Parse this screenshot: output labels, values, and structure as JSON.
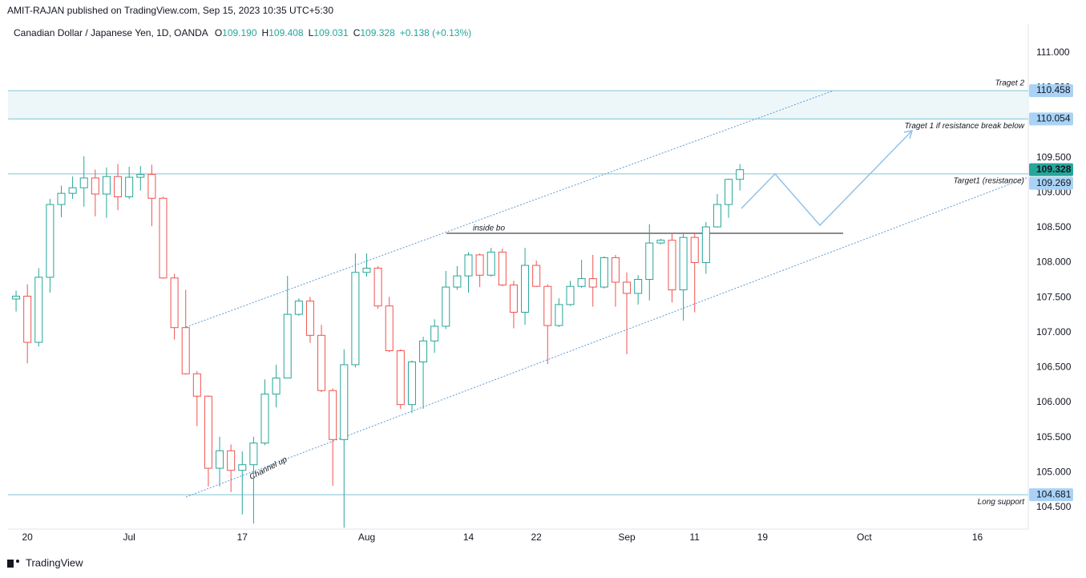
{
  "publisher": "AMIT-RAJAN published on TradingView.com, Sep 15, 2023 10:35 UTC+5:30",
  "logo": "TradingView",
  "chart_data": {
    "type": "candlestick",
    "symbol": "Canadian Dollar / Japanese Yen, 1D, OANDA",
    "ohlc_legend": [
      {
        "k": "O",
        "v": "109.190"
      },
      {
        "k": "H",
        "v": "109.408"
      },
      {
        "k": "L",
        "v": "109.031"
      },
      {
        "k": "C",
        "v": "109.328"
      }
    ],
    "change": "+0.138 (+0.13%)",
    "up_color": "#26a69a",
    "down_color": "#ef5350",
    "categories": [
      null,
      "20",
      null,
      null,
      null,
      null,
      null,
      null,
      null,
      null,
      "Jul",
      null,
      null,
      null,
      null,
      null,
      null,
      null,
      null,
      null,
      "17",
      null,
      null,
      null,
      null,
      null,
      null,
      null,
      null,
      null,
      null,
      "Aug",
      null,
      null,
      null,
      null,
      null,
      null,
      null,
      null,
      "14",
      null,
      null,
      null,
      null,
      null,
      "22",
      null,
      null,
      null,
      null,
      null,
      null,
      null,
      "Sep",
      null,
      null,
      null,
      null,
      null,
      "11",
      null,
      null,
      null,
      null,
      null,
      "19",
      null,
      null,
      null,
      null,
      null,
      null,
      null,
      null,
      "Oct",
      null,
      null,
      null,
      null,
      null,
      null,
      null,
      null,
      null,
      "16",
      null,
      null,
      null,
      null
    ],
    "open": [
      107.48,
      107.52,
      106.86,
      107.79,
      108.83,
      108.99,
      109.07,
      109.21,
      108.98,
      109.23,
      108.94,
      109.22,
      109.26,
      108.92,
      107.78,
      107.07,
      106.41,
      106.09,
      105.06,
      105.31,
      105.03,
      105.11,
      105.42,
      106.12,
      106.35,
      107.26,
      107.45,
      106.96,
      106.17,
      105.47,
      106.54,
      107.86,
      107.92,
      107.38,
      106.74,
      105.97,
      106.58,
      106.88,
      107.09,
      107.65,
      107.81,
      108.11,
      107.82,
      108.15,
      107.68,
      107.29,
      107.96,
      107.66,
      107.1,
      107.4,
      107.66,
      107.77,
      107.65,
      108.07,
      107.72,
      107.56,
      107.76,
      108.28,
      108.32,
      107.61,
      108.36,
      108.0,
      108.51,
      108.83,
      109.19,
      null,
      null,
      null,
      null,
      null,
      null,
      null,
      null,
      null,
      null,
      null,
      null,
      null,
      null,
      null,
      null,
      null,
      null,
      null,
      null,
      null,
      null,
      null,
      null,
      null
    ],
    "high": [
      107.6,
      107.69,
      107.92,
      108.91,
      109.1,
      109.23,
      109.52,
      109.33,
      109.36,
      109.41,
      109.37,
      109.38,
      109.4,
      108.94,
      107.84,
      107.61,
      106.45,
      106.1,
      105.51,
      105.4,
      105.3,
      105.51,
      106.33,
      106.54,
      107.81,
      107.49,
      107.51,
      107.11,
      106.2,
      106.76,
      108.13,
      108.13,
      107.95,
      107.51,
      106.76,
      106.6,
      106.94,
      107.19,
      107.88,
      107.95,
      108.15,
      108.13,
      108.21,
      108.2,
      107.74,
      108.21,
      108.03,
      107.69,
      107.49,
      107.74,
      108.04,
      108.11,
      108.09,
      108.11,
      107.86,
      107.82,
      108.55,
      108.34,
      108.42,
      108.43,
      108.43,
      108.58,
      108.98,
      109.2,
      109.408,
      null,
      null,
      null,
      null,
      null,
      null,
      null,
      null,
      null,
      null,
      null,
      null,
      null,
      null,
      null,
      null,
      null,
      null,
      null,
      null,
      null,
      null,
      null,
      null,
      null
    ],
    "low": [
      107.3,
      106.56,
      106.8,
      107.57,
      108.65,
      108.91,
      108.8,
      108.66,
      108.64,
      108.75,
      108.91,
      109.03,
      108.52,
      107.77,
      106.9,
      106.4,
      105.66,
      104.8,
      104.8,
      104.72,
      104.4,
      104.27,
      105.39,
      105.93,
      106.35,
      107.24,
      106.85,
      106.15,
      104.81,
      104.21,
      106.5,
      107.8,
      107.34,
      106.72,
      105.91,
      105.85,
      105.91,
      106.71,
      107.05,
      107.61,
      107.57,
      107.65,
      107.8,
      107.66,
      107.06,
      107.11,
      107.65,
      106.55,
      107.08,
      107.38,
      107.64,
      107.37,
      107.63,
      107.37,
      106.69,
      107.4,
      107.46,
      108.26,
      107.43,
      107.17,
      107.29,
      107.84,
      108.5,
      108.64,
      109.031,
      null,
      null,
      null,
      null,
      null,
      null,
      null,
      null,
      null,
      null,
      null,
      null,
      null,
      null,
      null,
      null,
      null,
      null,
      null,
      null,
      null,
      null,
      null,
      null,
      null
    ],
    "close": [
      107.52,
      106.86,
      107.79,
      108.83,
      108.99,
      109.07,
      109.21,
      108.98,
      109.23,
      108.94,
      109.22,
      109.26,
      108.92,
      107.78,
      107.07,
      106.41,
      106.09,
      105.06,
      105.31,
      105.03,
      105.11,
      105.42,
      106.12,
      106.35,
      107.26,
      107.45,
      106.96,
      106.17,
      105.47,
      106.54,
      107.86,
      107.92,
      107.38,
      106.74,
      105.97,
      106.58,
      106.88,
      107.09,
      107.65,
      107.81,
      108.11,
      107.82,
      108.15,
      107.68,
      107.29,
      107.96,
      107.66,
      107.1,
      107.4,
      107.66,
      107.77,
      107.65,
      108.07,
      107.72,
      107.56,
      107.76,
      108.28,
      108.32,
      107.61,
      108.36,
      108.0,
      108.51,
      108.83,
      109.19,
      109.328,
      null,
      null,
      null,
      null,
      null,
      null,
      null,
      null,
      null,
      null,
      null,
      null,
      null,
      null,
      null,
      null,
      null,
      null,
      null,
      null,
      null,
      null,
      null,
      null,
      null
    ],
    "last_price_label": "109.328",
    "ylim": [
      104.19,
      111.41
    ],
    "yticks": [
      {
        "value": 104.5,
        "label": "104.500"
      },
      {
        "value": 105,
        "label": "105.000"
      },
      {
        "value": 105.5,
        "label": "105.500"
      },
      {
        "value": 106,
        "label": "106.000"
      },
      {
        "value": 106.5,
        "label": "106.500"
      },
      {
        "value": 107,
        "label": "107.000"
      },
      {
        "value": 107.5,
        "label": "107.500"
      },
      {
        "value": 108,
        "label": "108.000"
      },
      {
        "value": 108.5,
        "label": "108.500"
      },
      {
        "value": 109,
        "label": "109.000"
      },
      {
        "value": 109.5,
        "label": "109.500"
      },
      {
        "value": 110,
        "label": "110.000"
      },
      {
        "value": 110.5,
        "label": "110.500"
      },
      {
        "value": 111,
        "label": "111.000"
      }
    ],
    "levels": [
      {
        "value": 110.458,
        "label": "110.458",
        "text": "Traget 2"
      },
      {
        "value": 110.054,
        "label": "110.054",
        "text": "Traget 1 if resistance break below"
      },
      {
        "value": 109.269,
        "label": "109.269",
        "text": "Target1 (resistance)"
      },
      {
        "value": 104.681,
        "label": "104.681",
        "text": "Long support"
      }
    ],
    "annotations": [
      "inside bo",
      "Channel up"
    ]
  }
}
